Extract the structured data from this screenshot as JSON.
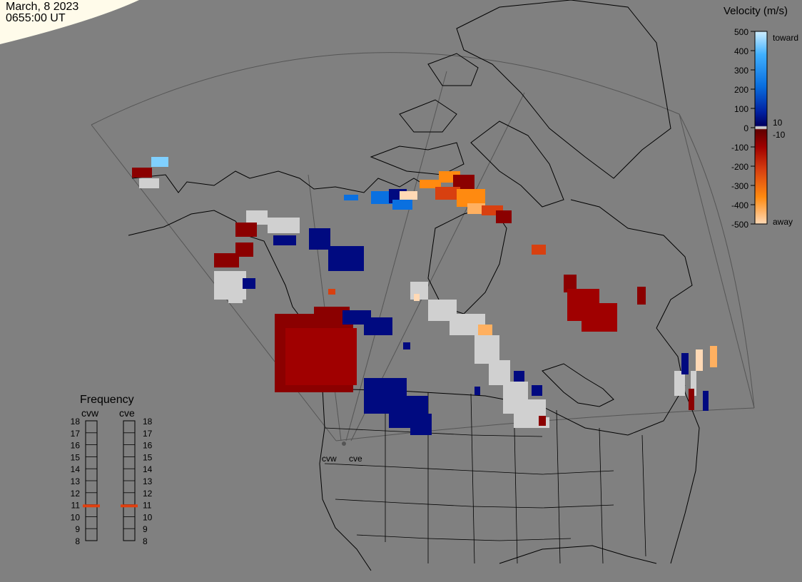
{
  "header": {
    "date": "March, 8 2023",
    "time": "0655:00 UT"
  },
  "velocity_scale": {
    "title": "Velocity (m/s)",
    "ticks": [
      "500",
      "400",
      "300",
      "200",
      "100",
      "0",
      "-100",
      "-200",
      "-300",
      "-400",
      "-500"
    ],
    "inner_labels": [
      "10",
      "-10"
    ],
    "toward_label": "toward",
    "away_label": "away"
  },
  "frequency_panel": {
    "title": "Frequency",
    "radars": [
      "cvw",
      "cve"
    ],
    "ticks": [
      "18",
      "17",
      "16",
      "15",
      "14",
      "13",
      "12",
      "11",
      "10",
      "9",
      "8"
    ],
    "cvw_freq_mhz": 10.9,
    "cve_freq_mhz": 10.9
  },
  "radar_sites": [
    "cvw",
    "cve"
  ],
  "colors": {
    "background": "#808080",
    "ground_scatter": "#d0d0d0",
    "freq_marker": "#e04010",
    "toward_strong": "#bfe6ff",
    "toward_weak": "#000a80",
    "away_weak": "#8b0000",
    "away_strong": "#ffcca0"
  }
}
